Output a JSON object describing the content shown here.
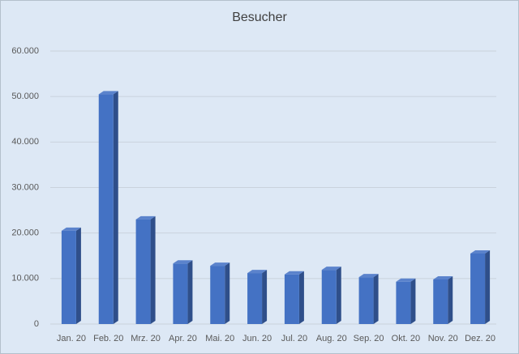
{
  "chart_data": {
    "type": "bar3d",
    "title": "Besucher",
    "categories": [
      "Jan. 20",
      "Feb. 20",
      "Mrz. 20",
      "Apr. 20",
      "Mai. 20",
      "Jun. 20",
      "Jul. 20",
      "Aug. 20",
      "Sep. 20",
      "Okt. 20",
      "Nov. 20",
      "Dez. 20"
    ],
    "values": [
      20500,
      50500,
      23000,
      13300,
      12800,
      11200,
      10900,
      11900,
      10300,
      9300,
      9800,
      15500
    ],
    "color": "#4472c4",
    "ylim": [
      0,
      60000
    ],
    "yticks": [
      0,
      {
        "value": 10000,
        "label": "10.000"
      },
      {
        "value": 20000,
        "label": "20.000"
      },
      {
        "value": 30000,
        "label": "30.000"
      },
      {
        "value": 40000,
        "label": "40.000"
      },
      {
        "value": 50000,
        "label": "50.000"
      },
      {
        "value": 60000,
        "label": "60.000"
      }
    ],
    "grid": true
  }
}
